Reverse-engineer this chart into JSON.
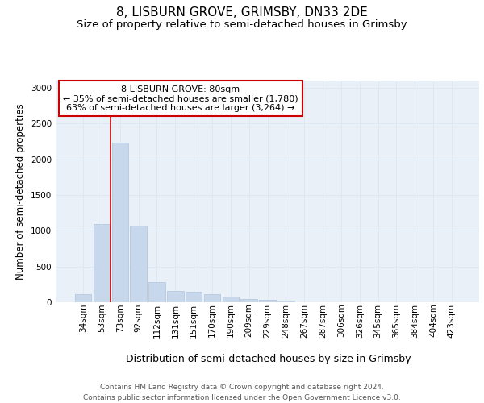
{
  "title": "8, LISBURN GROVE, GRIMSBY, DN33 2DE",
  "subtitle": "Size of property relative to semi-detached houses in Grimsby",
  "xlabel": "Distribution of semi-detached houses by size in Grimsby",
  "ylabel": "Number of semi-detached properties",
  "footer_line1": "Contains HM Land Registry data © Crown copyright and database right 2024.",
  "footer_line2": "Contains public sector information licensed under the Open Government Licence v3.0.",
  "annotation_title": "8 LISBURN GROVE: 80sqm",
  "annotation_line1": "← 35% of semi-detached houses are smaller (1,780)",
  "annotation_line2": "63% of semi-detached houses are larger (3,264) →",
  "bar_color": "#c8d8ec",
  "bar_edge_color": "#b0c4dc",
  "grid_color": "#dce8f4",
  "bg_color": "#eaf0f8",
  "red_line_color": "#cc0000",
  "bins": [
    "34sqm",
    "53sqm",
    "73sqm",
    "92sqm",
    "112sqm",
    "131sqm",
    "151sqm",
    "170sqm",
    "190sqm",
    "209sqm",
    "229sqm",
    "248sqm",
    "267sqm",
    "287sqm",
    "306sqm",
    "326sqm",
    "345sqm",
    "365sqm",
    "384sqm",
    "404sqm",
    "423sqm"
  ],
  "values": [
    110,
    1090,
    2230,
    1070,
    285,
    155,
    145,
    115,
    80,
    50,
    30,
    20,
    5,
    5,
    5,
    0,
    0,
    0,
    0,
    0,
    0
  ],
  "red_line_x": 1.5,
  "ylim": [
    0,
    3100
  ],
  "yticks": [
    0,
    500,
    1000,
    1500,
    2000,
    2500,
    3000
  ],
  "title_fontsize": 11,
  "subtitle_fontsize": 9.5,
  "axis_label_fontsize": 8.5,
  "tick_fontsize": 7.5,
  "footer_fontsize": 6.5,
  "annot_fontsize": 8
}
